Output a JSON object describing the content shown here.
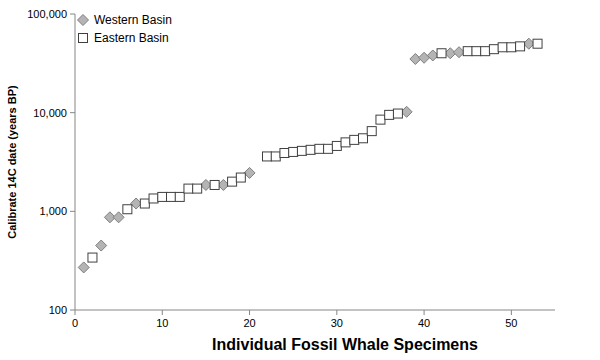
{
  "chart_data": {
    "type": "scatter",
    "x_label": "Individual Fossil Whale Specimens",
    "y_label": "Calibrate 14C date (years BP)",
    "log": "y",
    "grid": false,
    "legend": "top-left",
    "xlim": [
      0,
      55
    ],
    "xticks": [
      0,
      10,
      20,
      30,
      40,
      50
    ],
    "ylim": [
      100,
      100000
    ],
    "yticks": [
      {
        "value": 100,
        "label": "100"
      },
      {
        "value": 1000,
        "label": "1,000"
      },
      {
        "value": 10000,
        "label": "10,000"
      },
      {
        "value": 100000,
        "label": "100,000"
      }
    ],
    "series": [
      {
        "name": "Western Basin",
        "color": "#b4b4b4",
        "marker": "diamond",
        "x": [
          1,
          3,
          4,
          5,
          7,
          15,
          17,
          20,
          38,
          39,
          40,
          41,
          43,
          44,
          52
        ],
        "values": [
          270,
          450,
          870,
          870,
          1200,
          1850,
          1850,
          2450,
          10200,
          35000,
          36000,
          38000,
          40000,
          41000,
          50000
        ]
      },
      {
        "name": "Eastern Basin",
        "color": "#ffffff",
        "marker": "square",
        "x": [
          2,
          6,
          8,
          9,
          10,
          11,
          12,
          13,
          14,
          16,
          18,
          19,
          22,
          23,
          24,
          25,
          26,
          27,
          28,
          29,
          30,
          31,
          32,
          33,
          34,
          35,
          36,
          37,
          42,
          45,
          46,
          47,
          48,
          49,
          50,
          51,
          53
        ],
        "values": [
          340,
          1050,
          1200,
          1350,
          1400,
          1400,
          1400,
          1700,
          1700,
          1850,
          2000,
          2200,
          3600,
          3600,
          3900,
          4000,
          4100,
          4200,
          4300,
          4300,
          4600,
          5000,
          5300,
          5500,
          6500,
          8500,
          9500,
          9800,
          40000,
          42000,
          42000,
          42000,
          44000,
          46000,
          46000,
          47000,
          50000
        ]
      }
    ]
  }
}
